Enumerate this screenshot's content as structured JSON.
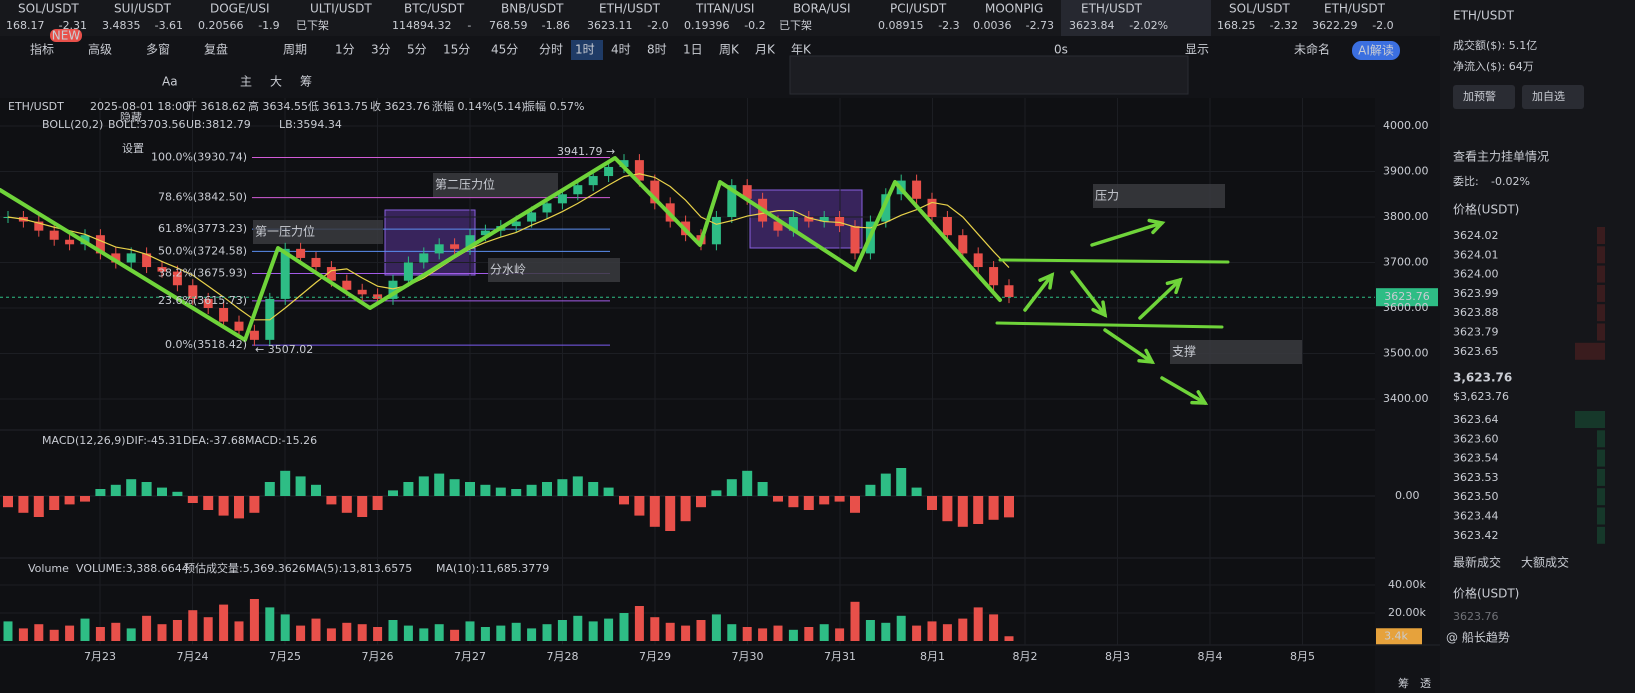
{
  "tabs": [
    {
      "name": "SOL/USDT",
      "price": "168.17",
      "change": "-2.31"
    },
    {
      "name": "SUI/USDT",
      "price": "3.4835",
      "change": "-3.61"
    },
    {
      "name": "DOGE/USI",
      "price": "0.20566",
      "change": "-1.9"
    },
    {
      "name": "ULTI/USDT",
      "price": "已下架",
      "change": ""
    },
    {
      "name": "BTC/USDT",
      "price": "114894.32",
      "change": "-"
    },
    {
      "name": "BNB/USDT",
      "price": "768.59",
      "change": "-1.86"
    },
    {
      "name": "ETH/USDT",
      "price": "3623.11",
      "change": "-2.0"
    },
    {
      "name": "TITAN/USI",
      "price": "0.19396",
      "change": "-0.2"
    },
    {
      "name": "BORA/USI",
      "price": "已下架",
      "change": ""
    },
    {
      "name": "PCI/USDT",
      "price": "0.08915",
      "change": "-2.3"
    },
    {
      "name": "MOONPIG",
      "price": "0.0036",
      "change": "-2.73"
    },
    {
      "name": "ETH/USDT",
      "price": "3623.84",
      "change": "-2.02%"
    },
    {
      "name": "SOL/USDT",
      "price": "168.25",
      "change": "-2.32"
    },
    {
      "name": "ETH/USDT",
      "price": "3622.29",
      "change": "-2.0"
    }
  ],
  "toolbar": {
    "items": [
      "指标",
      "高级",
      "多窗",
      "复盘",
      "周期"
    ],
    "badge": "NEW",
    "timeframes": [
      "1分",
      "3分",
      "5分",
      "15分",
      "45分",
      "分时",
      "1时",
      "4时",
      "8时",
      "1日",
      "周K",
      "月K",
      "年K"
    ],
    "right": [
      "0s",
      "显示",
      "未命名",
      "AI解读"
    ],
    "drawing": [
      "主",
      "大",
      "筹",
      "Aa"
    ]
  },
  "chart": {
    "info": [
      "ETH/USDT",
      "2025-08-01 18:00",
      "开 3618.62",
      "高 3634.55",
      "低 3613.75",
      "收 3623.76",
      "涨幅 0.14%(5.14)",
      "振幅 0.57%"
    ],
    "boll": [
      "BOLL(20,2)",
      "BOLL:3703.56",
      "UB:3812.79",
      "LB:3594.34"
    ],
    "menu": [
      "隐藏",
      "设置"
    ],
    "price_ticks": [
      {
        "value": 4000,
        "label": "4000.00"
      },
      {
        "value": 3900,
        "label": "3900.00"
      },
      {
        "value": 3800,
        "label": "3800.00"
      },
      {
        "value": 3700,
        "label": "3700.00"
      },
      {
        "value": 3600,
        "label": "3600.00"
      },
      {
        "value": 3500,
        "label": "3500.00"
      },
      {
        "value": 3400,
        "label": "3400.00"
      }
    ],
    "last_price": {
      "value": 3623.76,
      "label": "3623.76"
    },
    "fib": [
      {
        "value": 3930.74,
        "label": "100.0%(3930.74)"
      },
      {
        "value": 3842.5,
        "label": "78.6%(3842.50)"
      },
      {
        "value": 3773.23,
        "label": "61.8%(3773.23)"
      },
      {
        "value": 3724.58,
        "label": "50.0%(3724.58)"
      },
      {
        "value": 3675.93,
        "label": "38.2%(3675.93)"
      },
      {
        "value": 3615.73,
        "label": "23.6%(3615.73)"
      },
      {
        "value": 3518.42,
        "label": "0.0%(3518.42)"
      }
    ],
    "high": "3941.79 →",
    "low": "← 3507.02",
    "annotations": [
      "第一压力位",
      "第二压力位",
      "分水岭",
      "压力",
      "支撑"
    ],
    "dates": [
      "7月23",
      "7月24",
      "7月25",
      "7月26",
      "7月27",
      "7月28",
      "7月29",
      "7月30",
      "7月31",
      "8月1",
      "8月2",
      "8月3",
      "8月4",
      "8月5"
    ],
    "closes": [
      3800,
      3790,
      3770,
      3750,
      3740,
      3760,
      3720,
      3700,
      3720,
      3690,
      3680,
      3650,
      3620,
      3600,
      3570,
      3550,
      3530,
      3620,
      3730,
      3710,
      3690,
      3660,
      3640,
      3630,
      3620,
      3660,
      3700,
      3720,
      3740,
      3730,
      3760,
      3770,
      3780,
      3790,
      3810,
      3830,
      3850,
      3870,
      3890,
      3910,
      3925,
      3880,
      3830,
      3790,
      3760,
      3740,
      3800,
      3870,
      3840,
      3790,
      3770,
      3800,
      3790,
      3800,
      3780,
      3720,
      3790,
      3850,
      3880,
      3840,
      3800,
      3760,
      3720,
      3690,
      3650,
      3624
    ],
    "macd_text": [
      "MACD(12,26,9)",
      "DIF:-45.31",
      "DEA:-37.68",
      "MACD:-15.26"
    ],
    "macd_zero": {
      "value": 0,
      "label": "0.00"
    },
    "macd": [
      -8,
      -12,
      -15,
      -10,
      -6,
      -4,
      5,
      8,
      12,
      10,
      6,
      3,
      -5,
      -10,
      -14,
      -16,
      -12,
      10,
      18,
      14,
      8,
      -6,
      -12,
      -15,
      -10,
      4,
      10,
      14,
      16,
      12,
      10,
      8,
      6,
      5,
      8,
      10,
      12,
      14,
      10,
      6,
      -6,
      -14,
      -22,
      -25,
      -18,
      -8,
      4,
      12,
      18,
      10,
      -4,
      -8,
      -10,
      -6,
      -4,
      -12,
      8,
      16,
      20,
      6,
      -10,
      -18,
      -22,
      -20,
      -17,
      -15.26
    ],
    "volume_text": [
      "Volume",
      "VOLUME:3,388.6644",
      "预估成交量:5,369.3626",
      "MA(5):13,813.6575",
      "MA(10):11,685.3779"
    ],
    "volume_ticks": [
      {
        "value": 40000,
        "label": "40.00k"
      },
      {
        "value": 20000,
        "label": "20.00k"
      }
    ],
    "volumes": [
      14000,
      9000,
      12000,
      8000,
      11000,
      16000,
      10000,
      13000,
      9000,
      18000,
      12000,
      15000,
      22000,
      17000,
      26000,
      14000,
      30000,
      24000,
      19000,
      11000,
      16000,
      9000,
      13000,
      12000,
      10000,
      15000,
      11000,
      9000,
      12000,
      8000,
      14000,
      10000,
      11000,
      13000,
      9000,
      12000,
      15000,
      18000,
      14000,
      16000,
      20000,
      25000,
      17000,
      13000,
      11000,
      15000,
      19000,
      12000,
      10000,
      9000,
      11000,
      8000,
      10000,
      12000,
      9000,
      28000,
      15000,
      13000,
      18000,
      11000,
      14000,
      12000,
      16000,
      24000,
      19000,
      3388.6644
    ],
    "last_volume": {
      "value": 3388.6644,
      "label": "3.4k"
    },
    "corner": [
      "筹",
      "透"
    ]
  },
  "side": {
    "symbol": "ETH/USDT",
    "turnover": "成交额($): 5.1亿",
    "inflow": "净流入($): 64万",
    "buttons": [
      "加预警",
      "加自选"
    ],
    "depth_title": "查看主力挂单情况",
    "ratio_label": "委比:",
    "ratio": "-0.02%",
    "price_header": "价格(USDT)",
    "asks": [
      "3624.02",
      "3624.01",
      "3624.00",
      "3623.99",
      "3623.88",
      "3623.79",
      "3623.65"
    ],
    "last": "3,623.76",
    "last_usd": "$3,623.76",
    "bids": [
      "3623.64",
      "3623.60",
      "3623.54",
      "3623.53",
      "3623.50",
      "3623.44",
      "3623.42"
    ],
    "trades_tabs": [
      "最新成交",
      "大额成交"
    ],
    "trades_header": "价格(USDT)",
    "trade": "3623.76",
    "watermark": "@ 船长趋势"
  }
}
